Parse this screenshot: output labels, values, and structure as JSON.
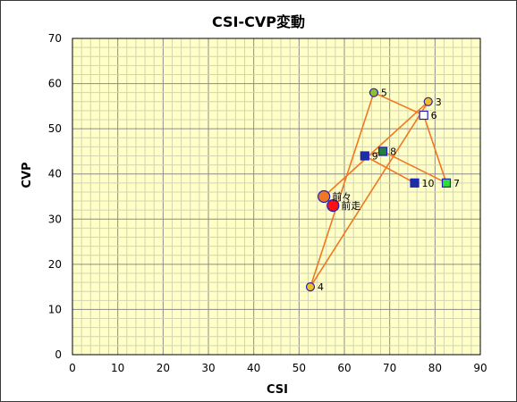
{
  "chart_data": {
    "type": "scatter",
    "title": "CSI-CVP変動",
    "xlabel": "CSI",
    "ylabel": "CVP",
    "xlim": [
      0,
      90
    ],
    "ylim": [
      0,
      70
    ],
    "x_ticks": [
      0,
      10,
      20,
      30,
      40,
      50,
      60,
      70,
      80,
      90
    ],
    "y_ticks": [
      0,
      10,
      20,
      30,
      40,
      50,
      60,
      70
    ],
    "grid": true,
    "plot_background": "#ffffc8",
    "line_color": "#f07820",
    "points": [
      {
        "label": "前々",
        "x": 55.5,
        "y": 35,
        "shape": "circle",
        "fill": "#f07820",
        "stroke": "#2020c0",
        "size": "large"
      },
      {
        "label": "前走",
        "x": 57.5,
        "y": 33,
        "shape": "circle",
        "fill": "#ff1010",
        "stroke": "#2020c0",
        "size": "large"
      },
      {
        "label": "3",
        "x": 78.5,
        "y": 56,
        "shape": "circle",
        "fill": "#f0c020",
        "stroke": "#2020c0",
        "size": "small"
      },
      {
        "label": "4",
        "x": 52.5,
        "y": 15,
        "shape": "circle",
        "fill": "#f0c020",
        "stroke": "#2020c0",
        "size": "small"
      },
      {
        "label": "5",
        "x": 66.5,
        "y": 58,
        "shape": "circle",
        "fill": "#90c030",
        "stroke": "#2020c0",
        "size": "small"
      },
      {
        "label": "6",
        "x": 77.5,
        "y": 53,
        "shape": "square",
        "fill": "#ffffff",
        "stroke": "#2020c0",
        "size": "small"
      },
      {
        "label": "7",
        "x": 82.5,
        "y": 38,
        "shape": "square",
        "fill": "#30e030",
        "stroke": "#2020c0",
        "size": "small"
      },
      {
        "label": "8",
        "x": 68.5,
        "y": 45,
        "shape": "square",
        "fill": "#208040",
        "stroke": "#2020c0",
        "size": "small"
      },
      {
        "label": "9",
        "x": 64.5,
        "y": 44,
        "shape": "square",
        "fill": "#1830a0",
        "stroke": "#2020c0",
        "size": "small"
      },
      {
        "label": "10",
        "x": 75.5,
        "y": 38,
        "shape": "square",
        "fill": "#1830a0",
        "stroke": "#2020c0",
        "size": "small"
      }
    ],
    "path_order": [
      "10",
      "9",
      "8",
      "7",
      "6",
      "5",
      "4",
      "3",
      "前々"
    ]
  }
}
